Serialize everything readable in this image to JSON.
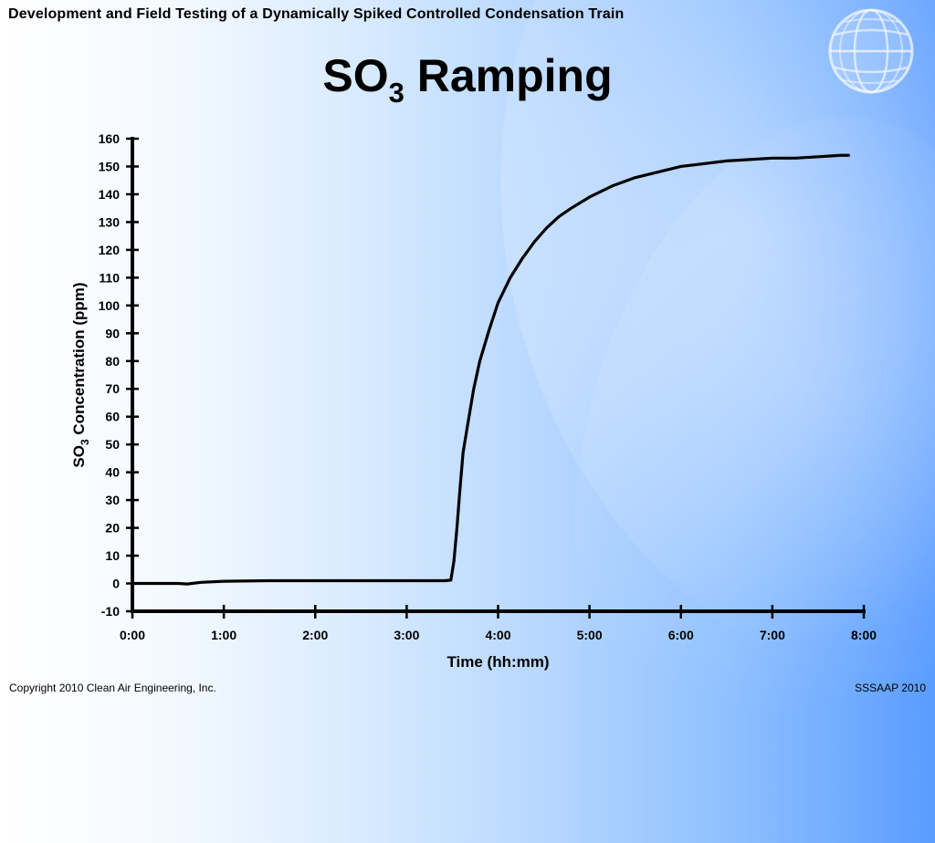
{
  "header": {
    "title": "Development and Field Testing of a Dynamically Spiked Controlled Condensation Train"
  },
  "slide": {
    "title_main": "SO",
    "title_subscript": "3",
    "title_rest": " Ramping"
  },
  "footer": {
    "left": "Copyright 2010 Clean Air Engineering, Inc.",
    "right": "SSSAAP 2010"
  },
  "logo": {
    "name": "globe-icon"
  },
  "colors": {
    "background_left": "#ffffff",
    "background_right": "#5a9cff",
    "line": "#000000",
    "text": "#000000"
  },
  "chart_data": {
    "type": "line",
    "title": "SO3 Ramping",
    "xlabel": "Time (hh:mm)",
    "ylabel": "SO3 Concentration (ppm)",
    "ylabel_parts": [
      "SO",
      "3",
      " Concentration (ppm)"
    ],
    "xlim": [
      0,
      480
    ],
    "ylim": [
      -10,
      160
    ],
    "xticks": [
      0,
      60,
      120,
      180,
      240,
      300,
      360,
      420,
      480
    ],
    "xtick_labels": [
      "0:00",
      "1:00",
      "2:00",
      "3:00",
      "4:00",
      "5:00",
      "6:00",
      "7:00",
      "8:00"
    ],
    "yticks": [
      -10,
      0,
      10,
      20,
      30,
      40,
      50,
      60,
      70,
      80,
      90,
      100,
      110,
      120,
      130,
      140,
      150,
      160
    ],
    "ytick_labels": [
      "-10",
      "0",
      "10",
      "20",
      "30",
      "40",
      "50",
      "60",
      "70",
      "80",
      "90",
      "100",
      "110",
      "120",
      "130",
      "140",
      "150",
      "160"
    ],
    "grid": false,
    "legend": false,
    "series": [
      {
        "x": [
          0,
          30,
          36,
          45,
          60,
          90,
          120,
          150,
          180,
          205,
          209,
          211,
          213,
          215,
          217,
          220,
          224,
          228,
          234,
          240,
          248,
          256,
          264,
          272,
          280,
          288,
          300,
          315,
          330,
          345,
          360,
          375,
          390,
          405,
          420,
          435,
          450,
          465,
          470
        ],
        "y": [
          0,
          0,
          -0.2,
          0.4,
          0.8,
          1.0,
          1.0,
          1.0,
          1.0,
          1.0,
          1.2,
          8,
          20,
          34,
          47,
          57,
          70,
          80,
          91,
          101,
          110,
          117,
          123,
          128,
          132,
          135,
          139,
          143,
          146,
          148,
          150,
          151,
          152,
          152.5,
          153,
          153,
          153.5,
          154,
          154
        ]
      }
    ]
  }
}
